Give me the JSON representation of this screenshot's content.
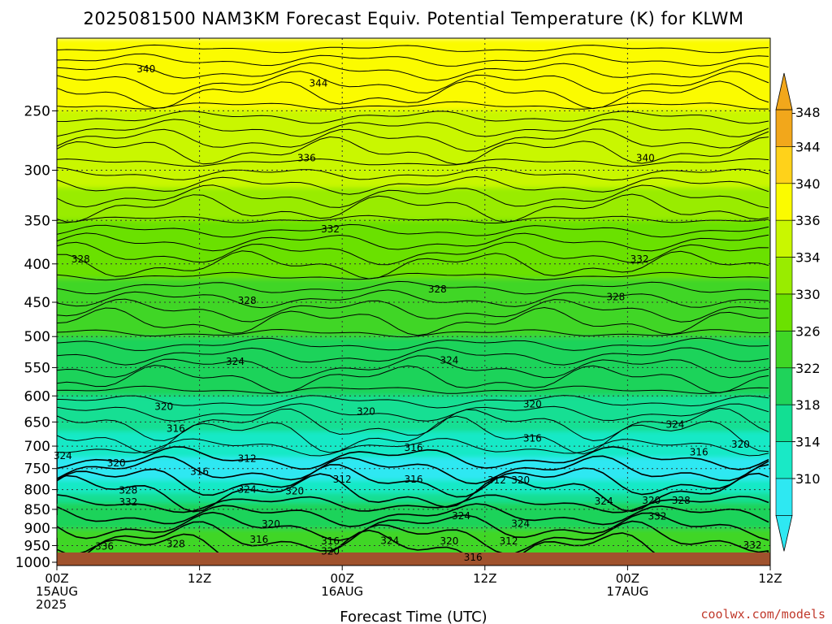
{
  "colors": {
    "ground": "#a0522d",
    "grid": "#333333",
    "credit": "#c0392b"
  },
  "chart_data": {
    "type": "heatmap",
    "title": "2025081500 NAM3KM Forecast Equiv. Potential Temperature (K) for KLWM",
    "xlabel": "Forecast Time (UTC)",
    "ylabel": "",
    "credit": "coolwx.com/models",
    "x_ticks": [
      {
        "hour": 0,
        "lines": [
          "00Z",
          "15AUG",
          "2025"
        ]
      },
      {
        "hour": 12,
        "lines": [
          "12Z"
        ]
      },
      {
        "hour": 24,
        "lines": [
          "00Z",
          "16AUG"
        ]
      },
      {
        "hour": 36,
        "lines": [
          "12Z"
        ]
      },
      {
        "hour": 48,
        "lines": [
          "00Z",
          "17AUG"
        ]
      },
      {
        "hour": 60,
        "lines": [
          "12Z"
        ]
      }
    ],
    "xlim": [
      0,
      60
    ],
    "y_ticks": [
      250,
      300,
      350,
      400,
      450,
      500,
      550,
      600,
      650,
      700,
      750,
      800,
      850,
      900,
      950,
      1000
    ],
    "ylim": [
      200,
      1010
    ],
    "y_scale": "log-pressure (reversed)",
    "ground_level_hPa": 1010,
    "grid": true,
    "colorbar": {
      "ticks": [
        348,
        344,
        340,
        336,
        334,
        330,
        326,
        322,
        318,
        314,
        310
      ],
      "colors": [
        "#f2a71b",
        "#ffd21a",
        "#fbfb00",
        "#c9f700",
        "#99ec00",
        "#6be100",
        "#3fd626",
        "#1fd35a",
        "#12df93",
        "#19e9c6",
        "#2ee8f2"
      ]
    },
    "profile": {
      "pressure_hPa": [
        200,
        250,
        300,
        350,
        400,
        450,
        500,
        550,
        600,
        650,
        700,
        750,
        800,
        850,
        900,
        950,
        1000
      ],
      "theta_e_K": [
        344,
        340,
        337,
        334,
        331,
        328,
        326,
        324,
        322,
        319,
        316,
        312,
        316,
        324,
        326,
        328,
        330
      ]
    },
    "contour_labels": [
      {
        "hour": 7.5,
        "p": 222,
        "text": "340"
      },
      {
        "hour": 22.0,
        "p": 232,
        "text": "344"
      },
      {
        "hour": 21.0,
        "p": 292,
        "text": "336"
      },
      {
        "hour": 49.5,
        "p": 292,
        "text": "340"
      },
      {
        "hour": 23.0,
        "p": 363,
        "text": "332"
      },
      {
        "hour": 2.0,
        "p": 398,
        "text": "328"
      },
      {
        "hour": 49.0,
        "p": 398,
        "text": "332"
      },
      {
        "hour": 16.0,
        "p": 452,
        "text": "328"
      },
      {
        "hour": 32.0,
        "p": 437,
        "text": "328"
      },
      {
        "hour": 47.0,
        "p": 447,
        "text": "328"
      },
      {
        "hour": 15.0,
        "p": 545,
        "text": "324"
      },
      {
        "hour": 33.0,
        "p": 543,
        "text": "324"
      },
      {
        "hour": 9.0,
        "p": 626,
        "text": "320"
      },
      {
        "hour": 26.0,
        "p": 636,
        "text": "320"
      },
      {
        "hour": 40.0,
        "p": 622,
        "text": "320"
      },
      {
        "hour": 10.0,
        "p": 670,
        "text": "316"
      },
      {
        "hour": 40.0,
        "p": 690,
        "text": "316"
      },
      {
        "hour": 52.0,
        "p": 662,
        "text": "324"
      },
      {
        "hour": 57.5,
        "p": 703,
        "text": "320"
      },
      {
        "hour": 30.0,
        "p": 710,
        "text": "316"
      },
      {
        "hour": 16.0,
        "p": 735,
        "text": "312"
      },
      {
        "hour": 54.0,
        "p": 720,
        "text": "316"
      },
      {
        "hour": 5.0,
        "p": 745,
        "text": "320"
      },
      {
        "hour": 12.0,
        "p": 765,
        "text": "316"
      },
      {
        "hour": 0.5,
        "p": 728,
        "text": "324"
      },
      {
        "hour": 24.0,
        "p": 783,
        "text": "312"
      },
      {
        "hour": 30.0,
        "p": 783,
        "text": "316"
      },
      {
        "hour": 37.0,
        "p": 785,
        "text": "312"
      },
      {
        "hour": 39.0,
        "p": 785,
        "text": "320"
      },
      {
        "hour": 6.0,
        "p": 810,
        "text": "328"
      },
      {
        "hour": 16.0,
        "p": 808,
        "text": "324"
      },
      {
        "hour": 20.0,
        "p": 812,
        "text": "320"
      },
      {
        "hour": 6.0,
        "p": 840,
        "text": "332"
      },
      {
        "hour": 46.0,
        "p": 838,
        "text": "324"
      },
      {
        "hour": 50.0,
        "p": 836,
        "text": "320"
      },
      {
        "hour": 52.5,
        "p": 836,
        "text": "328"
      },
      {
        "hour": 34.0,
        "p": 876,
        "text": "324"
      },
      {
        "hour": 39.0,
        "p": 897,
        "text": "324"
      },
      {
        "hour": 50.5,
        "p": 877,
        "text": "332"
      },
      {
        "hour": 18.0,
        "p": 898,
        "text": "320"
      },
      {
        "hour": 17.0,
        "p": 942,
        "text": "316"
      },
      {
        "hour": 4.0,
        "p": 962,
        "text": "336"
      },
      {
        "hour": 10.0,
        "p": 955,
        "text": "328"
      },
      {
        "hour": 23.0,
        "p": 947,
        "text": "316"
      },
      {
        "hour": 28.0,
        "p": 945,
        "text": "324"
      },
      {
        "hour": 33.0,
        "p": 946,
        "text": "320"
      },
      {
        "hour": 38.0,
        "p": 947,
        "text": "312"
      },
      {
        "hour": 23.0,
        "p": 977,
        "text": "320"
      },
      {
        "hour": 35.0,
        "p": 995,
        "text": "316"
      },
      {
        "hour": 58.5,
        "p": 958,
        "text": "332"
      }
    ]
  }
}
